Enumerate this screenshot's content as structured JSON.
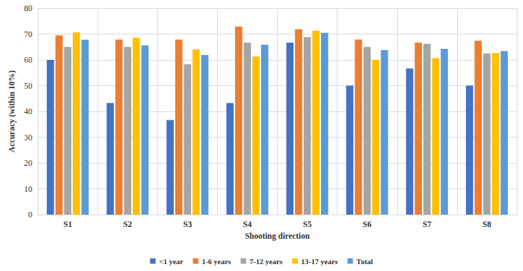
{
  "chart_data": {
    "type": "bar",
    "x_label": "Shooting direction",
    "y_label": "Accuracy (within 10%)",
    "categories": [
      "S1",
      "S2",
      "S3",
      "S4",
      "S5",
      "S6",
      "S7",
      "S8"
    ],
    "series": [
      {
        "name": "<1 year",
        "color": "#4472c4",
        "values": [
          60,
          43.3,
          36.7,
          43.3,
          66.7,
          50,
          56.7,
          50
        ]
      },
      {
        "name": "1-6 years",
        "color": "#ed7d31",
        "values": [
          69.5,
          67.9,
          67.9,
          72.9,
          71.9,
          67.9,
          66.7,
          67.4
        ]
      },
      {
        "name": "7-12 years",
        "color": "#a5a5a5",
        "values": [
          65,
          65,
          58.3,
          66.7,
          68.8,
          65,
          66.2,
          62.5
        ]
      },
      {
        "name": "13-17 years",
        "color": "#ffc000",
        "values": [
          70.7,
          68.6,
          64,
          61.3,
          71.3,
          60,
          60.7,
          62.7
        ]
      },
      {
        "name": "Total",
        "color": "#5b9bd5",
        "values": [
          67.8,
          65.6,
          61.9,
          65.9,
          70.5,
          63.8,
          64.3,
          63.4
        ]
      }
    ],
    "ylim": [
      0,
      80
    ],
    "yticks": [
      0,
      10,
      20,
      30,
      40,
      50,
      60,
      70,
      80
    ],
    "grid": true,
    "legend": "bottom"
  }
}
